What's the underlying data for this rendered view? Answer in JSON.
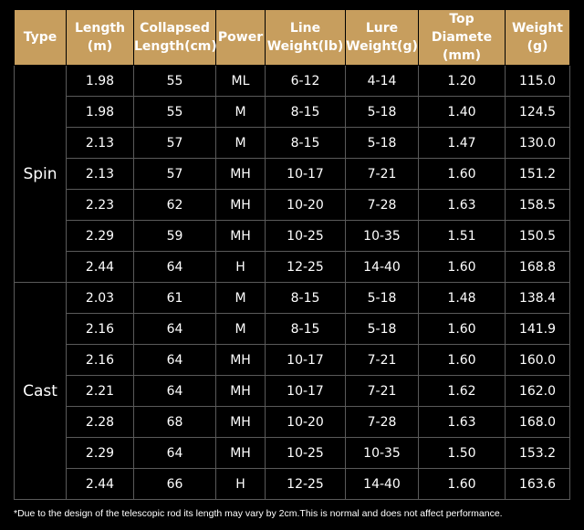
{
  "table": {
    "header": [
      "Type",
      "Length\n(m)",
      "Collapsed\nLength(cm)",
      "Power",
      "Line\nWeight(lb)",
      "Lure\nWeight(g)",
      "Top Diamete\n(mm)",
      "Weight\n(g)"
    ],
    "groups": [
      {
        "type": "Spin",
        "rows": [
          [
            "1.98",
            "55",
            "ML",
            "6-12",
            "4-14",
            "1.20",
            "115.0"
          ],
          [
            "1.98",
            "55",
            "M",
            "8-15",
            "5-18",
            "1.40",
            "124.5"
          ],
          [
            "2.13",
            "57",
            "M",
            "8-15",
            "5-18",
            "1.47",
            "130.0"
          ],
          [
            "2.13",
            "57",
            "MH",
            "10-17",
            "7-21",
            "1.60",
            "151.2"
          ],
          [
            "2.23",
            "62",
            "MH",
            "10-20",
            "7-28",
            "1.63",
            "158.5"
          ],
          [
            "2.29",
            "59",
            "MH",
            "10-25",
            "10-35",
            "1.51",
            "150.5"
          ],
          [
            "2.44",
            "64",
            "H",
            "12-25",
            "14-40",
            "1.60",
            "168.8"
          ]
        ]
      },
      {
        "type": "Cast",
        "rows": [
          [
            "2.03",
            "61",
            "M",
            "8-15",
            "5-18",
            "1.48",
            "138.4"
          ],
          [
            "2.16",
            "64",
            "M",
            "8-15",
            "5-18",
            "1.60",
            "141.9"
          ],
          [
            "2.16",
            "64",
            "MH",
            "10-17",
            "7-21",
            "1.60",
            "160.0"
          ],
          [
            "2.21",
            "64",
            "MH",
            "10-17",
            "7-21",
            "1.62",
            "162.0"
          ],
          [
            "2.28",
            "68",
            "MH",
            "10-20",
            "7-28",
            "1.63",
            "168.0"
          ],
          [
            "2.29",
            "64",
            "MH",
            "10-25",
            "10-35",
            "1.50",
            "153.2"
          ],
          [
            "2.44",
            "66",
            "H",
            "12-25",
            "14-40",
            "1.60",
            "163.6"
          ]
        ]
      }
    ]
  },
  "footnote": "*Due to the design of the telescopic rod its length may vary by 2cm.This is normal and does not affect performance."
}
